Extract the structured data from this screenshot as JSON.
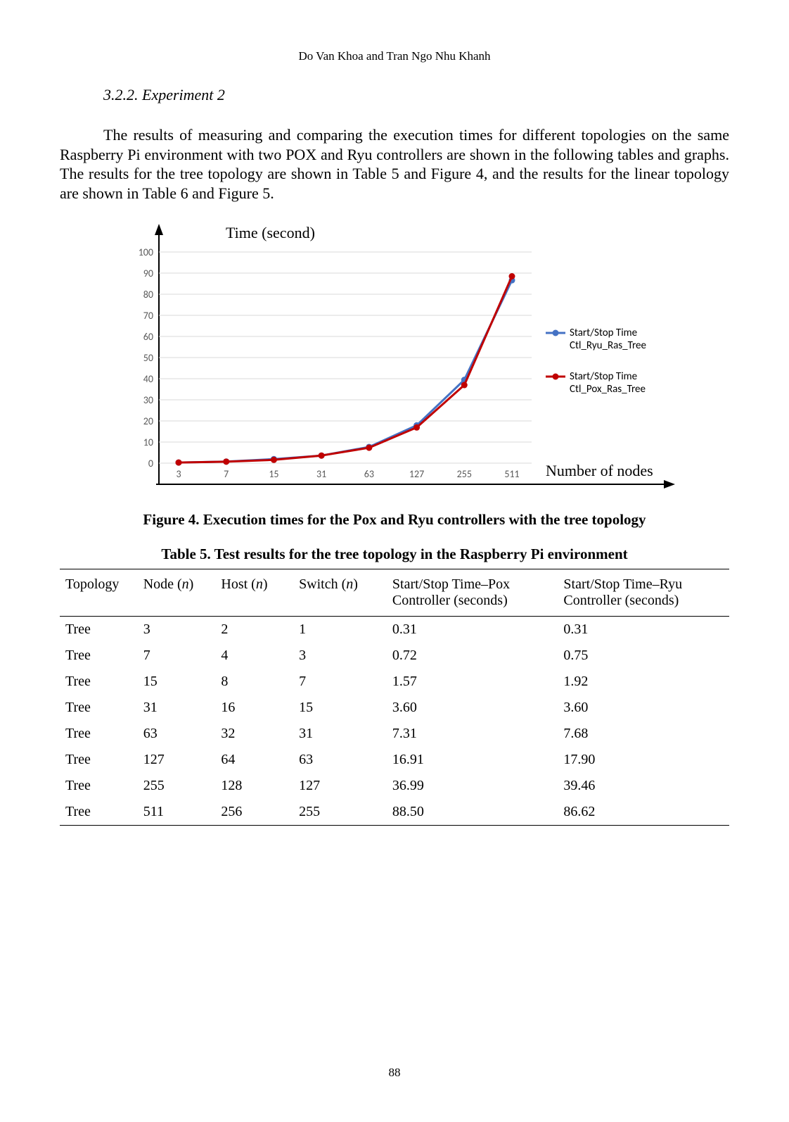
{
  "header": {
    "authors": "Do Van Khoa and Tran Ngo Nhu Khanh"
  },
  "section": {
    "heading": "3.2.2. Experiment 2"
  },
  "paragraph": {
    "text": "The results of measuring and comparing the execution times for different topologies on the same Raspberry Pi environment with two POX and Ryu controllers are shown in the following tables and graphs. The results for the tree topology are shown in Table 5 and Figure 4, and the results for the linear topology are shown in Table 6 and Figure 5."
  },
  "chart": {
    "type": "line",
    "title": "Time (second)",
    "xlabel": "Number of nodes",
    "categories": [
      "3",
      "7",
      "15",
      "31",
      "63",
      "127",
      "255",
      "511"
    ],
    "ylim": [
      0,
      100
    ],
    "ytick_step": 10,
    "yticks": [
      0,
      10,
      20,
      30,
      40,
      50,
      60,
      70,
      80,
      90,
      100
    ],
    "series": [
      {
        "name_line1": "Start/Stop Time",
        "name_line2": "Ctl_Ryu_Ras_Tree",
        "color": "#4472c4",
        "marker_color": "#4472c4",
        "values": [
          0.31,
          0.75,
          1.92,
          3.6,
          7.68,
          17.9,
          39.46,
          86.62
        ]
      },
      {
        "name_line1": "Start/Stop Time",
        "name_line2": "Ctl_Pox_Ras_Tree",
        "color": "#c00000",
        "marker_color": "#c00000",
        "values": [
          0.31,
          0.72,
          1.57,
          3.6,
          7.31,
          16.91,
          36.99,
          88.5
        ]
      }
    ],
    "plot": {
      "background_color": "#ffffff",
      "axis_color": "#000000",
      "grid_color": "#d9d9d9",
      "tick_fontsize": 14,
      "tick_color": "#595959",
      "line_width": 3,
      "marker_radius": 4.5,
      "title_fontsize": 22,
      "xlabel_fontsize": 22,
      "legend_fontsize": 15,
      "legend_text_color": "#000000"
    }
  },
  "figure_caption": "Figure 4. Execution times for the Pox and Ryu controllers with the tree topology",
  "table_caption": "Table 5. Test results for the tree topology in the Raspberry Pi environment",
  "table": {
    "columns": [
      {
        "label_plain": "Topology"
      },
      {
        "label_pre": "Node (",
        "label_n": "n",
        "label_post": ")"
      },
      {
        "label_pre": "Host (",
        "label_n": "n",
        "label_post": ")"
      },
      {
        "label_pre": "Switch (",
        "label_n": "n",
        "label_post": ")"
      },
      {
        "label_line1": "Start/Stop Time–Pox",
        "label_line2": "Controller (seconds)"
      },
      {
        "label_line1": "Start/Stop Time–Ryu",
        "label_line2": "Controller (seconds)"
      }
    ],
    "rows": [
      [
        "Tree",
        "3",
        "2",
        "1",
        "0.31",
        "0.31"
      ],
      [
        "Tree",
        "7",
        "4",
        "3",
        "0.72",
        "0.75"
      ],
      [
        "Tree",
        "15",
        "8",
        "7",
        "1.57",
        "1.92"
      ],
      [
        "Tree",
        "31",
        "16",
        "15",
        "3.60",
        "3.60"
      ],
      [
        "Tree",
        "63",
        "32",
        "31",
        "7.31",
        "7.68"
      ],
      [
        "Tree",
        "127",
        "64",
        "63",
        "16.91",
        "17.90"
      ],
      [
        "Tree",
        "255",
        "128",
        "127",
        "36.99",
        "39.46"
      ],
      [
        "Tree",
        "511",
        "256",
        "255",
        "88.50",
        "86.62"
      ]
    ],
    "col_widths_pct": [
      10,
      10,
      10,
      12,
      22,
      22
    ]
  },
  "page_number": "88"
}
